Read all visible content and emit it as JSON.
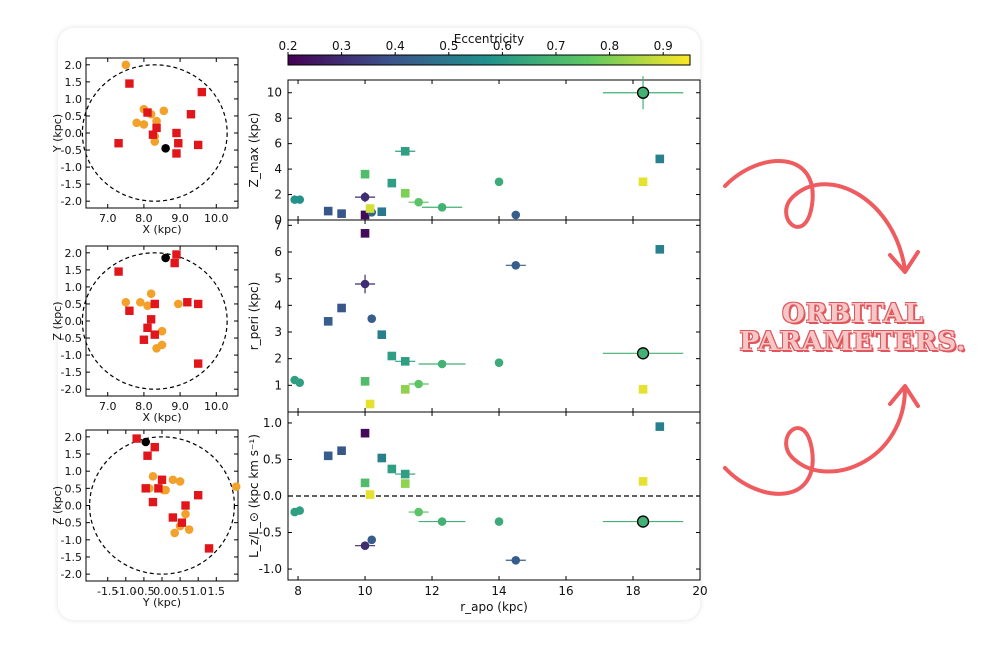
{
  "caption": {
    "line1": "ORBITAL",
    "line2": "PARAMETERS."
  },
  "colors": {
    "red": "#e0161b",
    "orange": "#f2a12a",
    "black": "#000000",
    "accent": "#ef5c5f"
  },
  "chart_data": [
    {
      "type": "scatter",
      "id": "xy",
      "xlabel": "X (kpc)",
      "ylabel": "Y (kpc)",
      "xlim": [
        6.4,
        10.6
      ],
      "ylim": [
        -2.2,
        2.2
      ],
      "xticks": [
        "7.0",
        "8.0",
        "9.0",
        "10.0"
      ],
      "xtick_values": [
        7,
        8,
        9,
        10
      ],
      "yticks": [
        "-2.0",
        "-1.5",
        "-1.0",
        "-0.5",
        "0.0",
        "0.5",
        "1.0",
        "1.5",
        "2.0"
      ],
      "ytick_values": [
        -2,
        -1.5,
        -1,
        -0.5,
        0,
        0.5,
        1,
        1.5,
        2
      ],
      "circle": {
        "center": [
          8.3,
          0
        ],
        "radius": 2.0
      },
      "squares": [
        [
          7.6,
          1.45
        ],
        [
          9.6,
          1.2
        ],
        [
          9.3,
          0.55
        ],
        [
          8.1,
          0.6
        ],
        [
          8.35,
          0.15
        ],
        [
          8.9,
          0.0
        ],
        [
          8.25,
          -0.05
        ],
        [
          7.3,
          -0.3
        ],
        [
          8.95,
          -0.3
        ],
        [
          9.5,
          -0.35
        ],
        [
          8.9,
          -0.6
        ]
      ],
      "circles": [
        [
          7.5,
          2.0
        ],
        [
          8.55,
          0.65
        ],
        [
          8.0,
          0.7
        ],
        [
          8.2,
          0.55
        ],
        [
          7.8,
          0.3
        ],
        [
          8.35,
          0.35
        ],
        [
          8.0,
          0.25
        ],
        [
          8.3,
          -0.1
        ],
        [
          8.3,
          -0.25
        ]
      ],
      "special": [
        [
          8.6,
          -0.45
        ]
      ]
    },
    {
      "type": "scatter",
      "id": "xz",
      "xlabel": "X (kpc)",
      "ylabel": "Z (kpc)",
      "xlim": [
        6.4,
        10.6
      ],
      "ylim": [
        -2.2,
        2.2
      ],
      "xticks": [
        "7.0",
        "8.0",
        "9.0",
        "10.0"
      ],
      "xtick_values": [
        7,
        8,
        9,
        10
      ],
      "yticks": [
        "-2.0",
        "-1.5",
        "-1.0",
        "-0.5",
        "0.0",
        "0.5",
        "1.0",
        "1.5",
        "2.0"
      ],
      "ytick_values": [
        -2,
        -1.5,
        -1,
        -0.5,
        0,
        0.5,
        1,
        1.5,
        2
      ],
      "circle": {
        "center": [
          8.3,
          0
        ],
        "radius": 2.0
      },
      "squares": [
        [
          8.9,
          1.95
        ],
        [
          8.85,
          1.7
        ],
        [
          7.3,
          1.45
        ],
        [
          9.2,
          0.55
        ],
        [
          9.5,
          0.5
        ],
        [
          8.3,
          0.5
        ],
        [
          7.6,
          0.3
        ],
        [
          8.2,
          0.05
        ],
        [
          8.1,
          -0.2
        ],
        [
          8.3,
          -0.4
        ],
        [
          8.0,
          -0.55
        ],
        [
          9.5,
          -1.25
        ]
      ],
      "circles": [
        [
          8.2,
          0.8
        ],
        [
          7.5,
          0.55
        ],
        [
          7.9,
          0.55
        ],
        [
          8.1,
          0.45
        ],
        [
          8.95,
          0.5
        ],
        [
          8.5,
          -0.3
        ],
        [
          8.5,
          -0.7
        ],
        [
          8.35,
          -0.8
        ]
      ],
      "special": [
        [
          8.6,
          1.85
        ]
      ]
    },
    {
      "type": "scatter",
      "id": "yz",
      "xlabel": "Y (kpc)",
      "ylabel": "Z (kpc)",
      "xlim": [
        -2.1,
        2.1
      ],
      "ylim": [
        -2.2,
        2.2
      ],
      "xticks": [
        "-1.5",
        "-1.0",
        "-0.5",
        "0.0",
        "0.5",
        "1.0",
        "1.5"
      ],
      "xtick_values": [
        -1.5,
        -1,
        -0.5,
        0,
        0.5,
        1,
        1.5
      ],
      "yticks": [
        "-2.0",
        "-1.5",
        "-1.0",
        "-0.5",
        "0.0",
        "0.5",
        "1.0",
        "1.5",
        "2.0"
      ],
      "ytick_values": [
        -2,
        -1.5,
        -1,
        -0.5,
        0,
        0.5,
        1,
        1.5,
        2
      ],
      "circle": {
        "center": [
          0,
          0
        ],
        "radius": 2.0
      },
      "squares": [
        [
          -0.7,
          1.95
        ],
        [
          -0.2,
          1.7
        ],
        [
          -0.4,
          1.45
        ],
        [
          0.0,
          0.75
        ],
        [
          -0.45,
          0.5
        ],
        [
          -0.1,
          0.5
        ],
        [
          1.0,
          0.3
        ],
        [
          -0.25,
          0.1
        ],
        [
          0.65,
          0.0
        ],
        [
          0.3,
          -0.35
        ],
        [
          0.55,
          -0.5
        ],
        [
          1.3,
          -1.25
        ]
      ],
      "circles": [
        [
          -0.25,
          0.85
        ],
        [
          0.3,
          0.75
        ],
        [
          0.5,
          0.7
        ],
        [
          -0.35,
          0.5
        ],
        [
          0.1,
          0.45
        ],
        [
          0.05,
          0.45
        ],
        [
          2.05,
          0.55
        ],
        [
          0.65,
          -0.25
        ],
        [
          0.5,
          -0.6
        ],
        [
          0.75,
          -0.7
        ],
        [
          0.35,
          -0.8
        ]
      ],
      "special": [
        [
          -0.45,
          1.85
        ]
      ]
    },
    {
      "type": "scatter",
      "id": "zmax",
      "ylabel": "Z_max (kpc)",
      "xlabel": "",
      "xlim": [
        7.7,
        20
      ],
      "ylim": [
        0,
        11
      ],
      "yticks": [
        "0",
        "2",
        "4",
        "6",
        "8",
        "10"
      ],
      "ytick_values": [
        0,
        2,
        4,
        6,
        8,
        10
      ],
      "points": [
        {
          "x": 7.9,
          "y": 1.6,
          "m": "o",
          "e": 0.58
        },
        {
          "x": 8.05,
          "y": 1.6,
          "m": "o",
          "e": 0.58
        },
        {
          "x": 8.9,
          "y": 0.7,
          "m": "s",
          "e": 0.4
        },
        {
          "x": 9.3,
          "y": 0.5,
          "m": "s",
          "e": 0.4
        },
        {
          "x": 10.0,
          "y": 1.8,
          "m": "o",
          "e": 0.3,
          "xerr": 0.3,
          "yerr": 0.4
        },
        {
          "x": 10.0,
          "y": 0.4,
          "m": "s",
          "e": 0.22
        },
        {
          "x": 10.2,
          "y": 0.6,
          "m": "o",
          "e": 0.45
        },
        {
          "x": 10.5,
          "y": 0.65,
          "m": "s",
          "e": 0.5
        },
        {
          "x": 10.0,
          "y": 3.6,
          "m": "s",
          "e": 0.72
        },
        {
          "x": 10.15,
          "y": 0.9,
          "m": "s",
          "e": 0.9
        },
        {
          "x": 10.8,
          "y": 2.9,
          "m": "s",
          "e": 0.62
        },
        {
          "x": 11.2,
          "y": 5.4,
          "m": "s",
          "e": 0.62,
          "xerr": 0.3
        },
        {
          "x": 11.2,
          "y": 2.1,
          "m": "s",
          "e": 0.8
        },
        {
          "x": 11.6,
          "y": 1.4,
          "m": "o",
          "e": 0.75,
          "xerr": 0.3
        },
        {
          "x": 12.3,
          "y": 1.0,
          "m": "o",
          "e": 0.68,
          "xerr": 0.6
        },
        {
          "x": 14.0,
          "y": 3.0,
          "m": "o",
          "e": 0.66
        },
        {
          "x": 14.5,
          "y": 0.4,
          "m": "o",
          "e": 0.42
        },
        {
          "x": 18.3,
          "y": 10.0,
          "m": "O",
          "e": 0.68,
          "xerr": 1.2,
          "yerr": 1.3
        },
        {
          "x": 18.3,
          "y": 3.0,
          "m": "s",
          "e": 0.92
        },
        {
          "x": 18.8,
          "y": 4.8,
          "m": "s",
          "e": 0.52
        }
      ]
    },
    {
      "type": "scatter",
      "id": "rperi",
      "ylabel": "r_peri (kpc)",
      "xlabel": "",
      "xlim": [
        7.7,
        20
      ],
      "ylim": [
        0,
        7.2
      ],
      "yticks": [
        "1",
        "2",
        "3",
        "4",
        "5",
        "6",
        "7"
      ],
      "ytick_values": [
        1,
        2,
        3,
        4,
        5,
        6,
        7
      ],
      "points": [
        {
          "x": 7.9,
          "y": 1.2,
          "m": "o",
          "e": 0.62
        },
        {
          "x": 8.05,
          "y": 1.1,
          "m": "o",
          "e": 0.62
        },
        {
          "x": 8.9,
          "y": 3.4,
          "m": "s",
          "e": 0.42
        },
        {
          "x": 9.3,
          "y": 3.9,
          "m": "s",
          "e": 0.4
        },
        {
          "x": 10.0,
          "y": 6.7,
          "m": "s",
          "e": 0.22
        },
        {
          "x": 10.0,
          "y": 4.8,
          "m": "o",
          "e": 0.3,
          "xerr": 0.3,
          "yerr": 0.35
        },
        {
          "x": 10.2,
          "y": 3.5,
          "m": "o",
          "e": 0.42
        },
        {
          "x": 10.5,
          "y": 2.9,
          "m": "s",
          "e": 0.52
        },
        {
          "x": 10.8,
          "y": 2.1,
          "m": "s",
          "e": 0.62
        },
        {
          "x": 11.2,
          "y": 1.9,
          "m": "s",
          "e": 0.62,
          "xerr": 0.3
        },
        {
          "x": 10.0,
          "y": 1.15,
          "m": "s",
          "e": 0.72
        },
        {
          "x": 10.15,
          "y": 0.3,
          "m": "s",
          "e": 0.92
        },
        {
          "x": 11.2,
          "y": 0.85,
          "m": "s",
          "e": 0.82
        },
        {
          "x": 11.6,
          "y": 1.05,
          "m": "o",
          "e": 0.75,
          "xerr": 0.3
        },
        {
          "x": 12.3,
          "y": 1.8,
          "m": "o",
          "e": 0.68,
          "xerr": 0.7
        },
        {
          "x": 14.0,
          "y": 1.85,
          "m": "o",
          "e": 0.66
        },
        {
          "x": 14.5,
          "y": 5.5,
          "m": "o",
          "e": 0.42,
          "xerr": 0.3
        },
        {
          "x": 18.3,
          "y": 2.2,
          "m": "O",
          "e": 0.68,
          "xerr": 1.2
        },
        {
          "x": 18.3,
          "y": 0.85,
          "m": "s",
          "e": 0.92
        },
        {
          "x": 18.8,
          "y": 6.1,
          "m": "s",
          "e": 0.52
        }
      ]
    },
    {
      "type": "scatter",
      "id": "lz",
      "ylabel": "L_z/L_⊙ (kpc km s⁻¹)",
      "xlabel": "r_apo (kpc)",
      "xlim": [
        7.7,
        20
      ],
      "ylim": [
        -1.15,
        1.15
      ],
      "xticks": [
        "8",
        "10",
        "12",
        "14",
        "16",
        "18",
        "20"
      ],
      "xtick_values": [
        8,
        10,
        12,
        14,
        16,
        18,
        20
      ],
      "yticks": [
        "-1.0",
        "-0.5",
        "0.0",
        "0.5",
        "1.0"
      ],
      "ytick_values": [
        -1,
        -0.5,
        0,
        0.5,
        1
      ],
      "zero_line": true,
      "points": [
        {
          "x": 7.9,
          "y": -0.22,
          "m": "o",
          "e": 0.62
        },
        {
          "x": 8.05,
          "y": -0.2,
          "m": "o",
          "e": 0.62
        },
        {
          "x": 8.9,
          "y": 0.55,
          "m": "s",
          "e": 0.42
        },
        {
          "x": 9.3,
          "y": 0.62,
          "m": "s",
          "e": 0.4
        },
        {
          "x": 10.0,
          "y": 0.86,
          "m": "s",
          "e": 0.22
        },
        {
          "x": 10.0,
          "y": -0.68,
          "m": "o",
          "e": 0.3,
          "xerr": 0.3
        },
        {
          "x": 10.2,
          "y": -0.6,
          "m": "o",
          "e": 0.42
        },
        {
          "x": 10.5,
          "y": 0.52,
          "m": "s",
          "e": 0.52
        },
        {
          "x": 10.8,
          "y": 0.37,
          "m": "s",
          "e": 0.62
        },
        {
          "x": 11.2,
          "y": 0.3,
          "m": "s",
          "e": 0.62,
          "xerr": 0.3
        },
        {
          "x": 10.0,
          "y": 0.18,
          "m": "s",
          "e": 0.72
        },
        {
          "x": 10.15,
          "y": 0.02,
          "m": "s",
          "e": 0.92
        },
        {
          "x": 11.2,
          "y": 0.17,
          "m": "s",
          "e": 0.82
        },
        {
          "x": 11.6,
          "y": -0.22,
          "m": "o",
          "e": 0.75,
          "xerr": 0.3
        },
        {
          "x": 12.3,
          "y": -0.35,
          "m": "o",
          "e": 0.68,
          "xerr": 0.7
        },
        {
          "x": 14.0,
          "y": -0.35,
          "m": "o",
          "e": 0.66
        },
        {
          "x": 14.5,
          "y": -0.88,
          "m": "o",
          "e": 0.42,
          "xerr": 0.3
        },
        {
          "x": 18.3,
          "y": -0.35,
          "m": "O",
          "e": 0.68,
          "xerr": 1.2
        },
        {
          "x": 18.3,
          "y": 0.2,
          "m": "s",
          "e": 0.92
        },
        {
          "x": 18.8,
          "y": 0.95,
          "m": "s",
          "e": 0.52
        }
      ]
    },
    {
      "type": "colorbar",
      "id": "ecc",
      "label": "Eccentricity",
      "range": [
        0.2,
        0.95
      ],
      "ticks": [
        "0.2",
        "0.3",
        "0.4",
        "0.5",
        "0.6",
        "0.7",
        "0.8",
        "0.9"
      ],
      "tick_values": [
        0.2,
        0.3,
        0.4,
        0.5,
        0.6,
        0.7,
        0.8,
        0.9
      ],
      "colormap": [
        "#440154",
        "#3b528b",
        "#21918c",
        "#5ec962",
        "#fde725"
      ]
    }
  ]
}
